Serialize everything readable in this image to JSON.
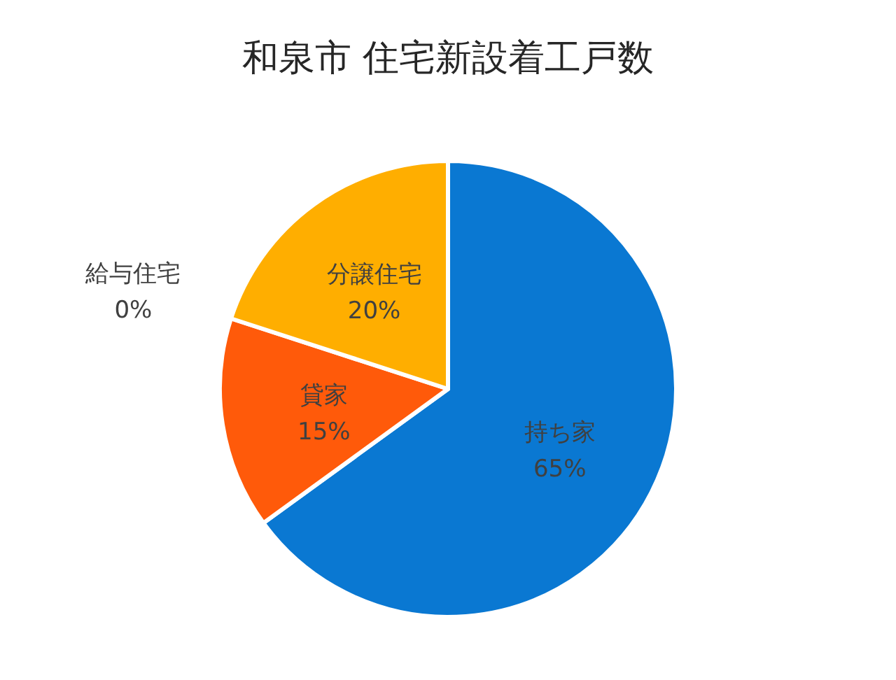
{
  "chart_data": {
    "type": "pie",
    "title": "和泉市 住宅新設着工戸数",
    "categories": [
      "持ち家",
      "貸家",
      "給与住宅",
      "分譲住宅"
    ],
    "values": [
      65,
      15,
      0,
      20
    ],
    "colors": [
      "#0a78d2",
      "#ff5a0a",
      "#a5a5a5",
      "#ffae00"
    ],
    "value_labels": [
      "65%",
      "15%",
      "0%",
      "20%"
    ],
    "legend": false
  }
}
